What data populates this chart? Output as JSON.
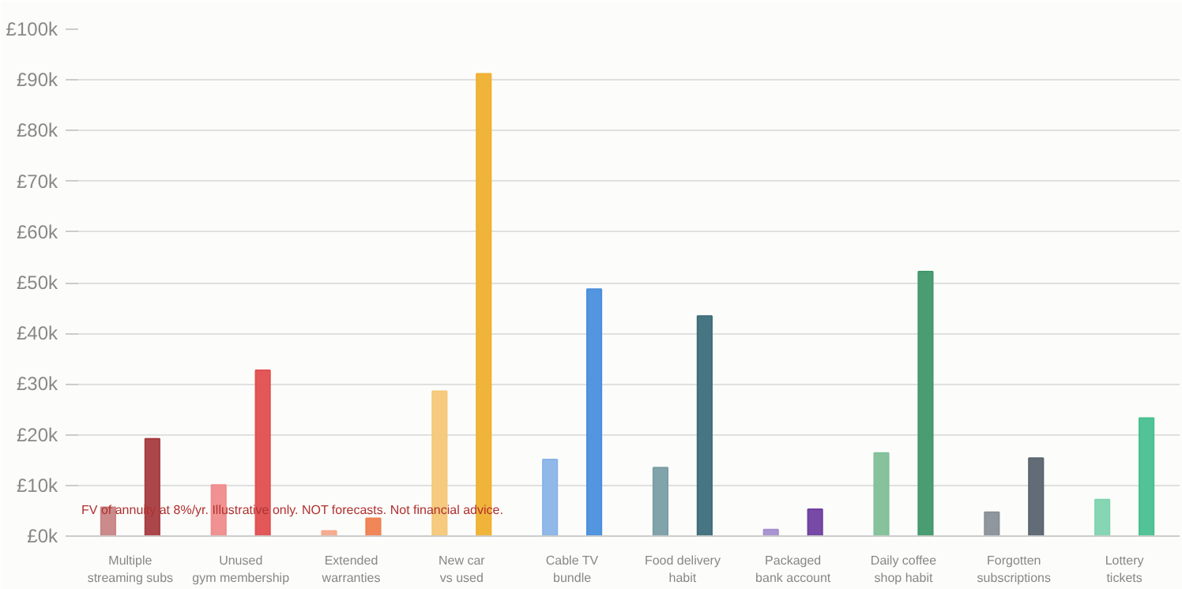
{
  "chart_data": {
    "type": "bar",
    "categories": [
      "Multiple\nstreaming subs",
      "Unused\ngym membership",
      "Extended\nwarranties",
      "New car\nvs used",
      "Cable TV\nbundle",
      "Food delivery\nhabit",
      "Packaged\nbank account",
      "Daily coffee\nshop habit",
      "Forgotten\nsubscriptions",
      "Lottery\ntickets"
    ],
    "series": [
      {
        "colors": [
          "#c98585",
          "#f08c8c",
          "#f5a88a",
          "#f5c878",
          "#8ab4e8",
          "#7a9ea5",
          "#a58fcf",
          "#80c098",
          "#8a9098",
          "#80d4b0"
        ],
        "values": [
          5.7,
          10.1,
          1.0,
          28.6,
          15.1,
          13.5,
          1.3,
          16.4,
          4.7,
          7.2
        ]
      },
      {
        "colors": [
          "#a63d40",
          "#e04f50",
          "#f08050",
          "#f0b030",
          "#4a8fdd",
          "#3d6e7a",
          "#7040a0",
          "#40986a",
          "#5a6470",
          "#48c090"
        ],
        "values": [
          19.2,
          32.7,
          3.5,
          91.2,
          48.7,
          43.4,
          5.3,
          52.2,
          15.4,
          23.3
        ]
      }
    ],
    "ylim": [
      0,
      100
    ],
    "yticks": [
      {
        "value": 0,
        "label": "£0k"
      },
      {
        "value": 10,
        "label": "£10k"
      },
      {
        "value": 20,
        "label": "£20k"
      },
      {
        "value": 30,
        "label": "£30k"
      },
      {
        "value": 40,
        "label": "£40k"
      },
      {
        "value": 50,
        "label": "£50k"
      },
      {
        "value": 60,
        "label": "£60k"
      },
      {
        "value": 70,
        "label": "£70k"
      },
      {
        "value": 80,
        "label": "£80k"
      },
      {
        "value": 90,
        "label": "£90k"
      },
      {
        "value": 100,
        "label": "£100k"
      }
    ],
    "grid": "y",
    "annotations": [
      "FV of annuity at 8%/yr. Illustrative only. NOT forecasts. Not financial advice."
    ]
  }
}
